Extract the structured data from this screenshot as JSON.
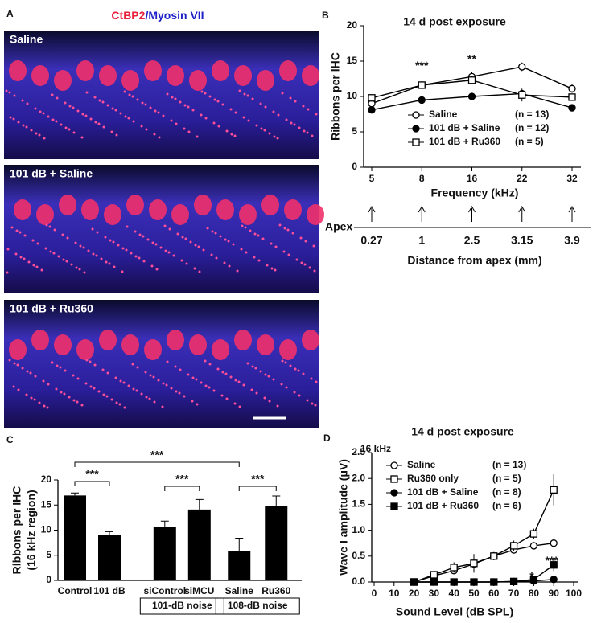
{
  "figure": {
    "panel_letters": [
      "A",
      "B",
      "C",
      "D"
    ],
    "panel_a_title": [
      "CtBP2",
      "/Myosin VII"
    ],
    "image_labels": [
      "Saline",
      "101 dB + Saline",
      "101 dB + Ru360"
    ],
    "apex": {
      "label": "Apex",
      "values": [
        0.27,
        1,
        2.5,
        3.15,
        3.9
      ],
      "axis_label": "Distance from apex (mm)"
    }
  },
  "chart_data": [
    {
      "type": "line",
      "title": "14 d post exposure",
      "ylabel": "Ribbons per IHC",
      "xlabel": "Frequency (kHz)",
      "categories": [
        "5",
        "8",
        "16",
        "22",
        "32"
      ],
      "ylim": [
        0,
        20
      ],
      "yticks": [
        0,
        5,
        10,
        15,
        20
      ],
      "series": [
        {
          "name": "Saline",
          "n": "(n = 13)",
          "marker": "open-circle",
          "color": "#000000",
          "values": [
            9.0,
            11.6,
            12.8,
            14.2,
            11.1
          ],
          "errors": [
            0.6,
            0.3,
            0.7,
            0.6,
            0.6
          ]
        },
        {
          "name": "101 dB + Saline",
          "n": "(n = 12)",
          "marker": "filled-circle",
          "color": "#000000",
          "values": [
            8.1,
            9.5,
            10.0,
            10.4,
            8.4
          ],
          "errors": [
            0.3,
            0.2,
            0.2,
            0.5,
            0.4
          ]
        },
        {
          "name": "101 dB + Ru360",
          "n": "(n = 5)",
          "marker": "open-square",
          "color": "#000000",
          "values": [
            9.8,
            11.6,
            12.3,
            10.2,
            9.9
          ],
          "errors": [
            0.5,
            0.3,
            0.6,
            0.9,
            0.5
          ]
        }
      ],
      "annotations": [
        "***",
        "**"
      ]
    },
    {
      "type": "bar",
      "ylabel": [
        "Ribbons per IHC",
        "(16 kHz region)"
      ],
      "categories": [
        "Control",
        "101 dB",
        "siControl",
        "siMCU",
        "Saline",
        "Ru360"
      ],
      "values": [
        16.9,
        9.1,
        10.6,
        14.1,
        5.8,
        14.8
      ],
      "errors": [
        0.5,
        0.6,
        1.2,
        2.0,
        2.6,
        2.0
      ],
      "color": "#000000",
      "ylim": [
        0,
        20
      ],
      "yticks": [
        0,
        5,
        10,
        15,
        20
      ],
      "group_labels": [
        "101-dB noise",
        "108-dB noise"
      ],
      "significance": [
        "***",
        "***",
        "***",
        "***"
      ]
    },
    {
      "type": "line",
      "title": "14 d post exposure",
      "subtitle": "16 kHz",
      "ylabel": "Wave I amplitude (μV)",
      "xlabel": "Sound Level (dB SPL)",
      "x": [
        20,
        30,
        40,
        50,
        60,
        70,
        80,
        90
      ],
      "xlim": [
        0,
        100
      ],
      "xticks": [
        0,
        10,
        20,
        30,
        40,
        50,
        60,
        70,
        80,
        90,
        100
      ],
      "ylim": [
        0,
        2.5
      ],
      "yticks": [
        {
          "value": 0,
          "label": "0.0"
        },
        0.5,
        {
          "value": 1,
          "label": "1.0"
        },
        1.5,
        {
          "value": 2,
          "label": "2.0"
        },
        2.5
      ],
      "series": [
        {
          "name": "Saline",
          "n": "(n = 13)",
          "marker": "open-circle",
          "color": "#000000",
          "values": [
            0,
            0.12,
            0.22,
            0.35,
            0.5,
            0.62,
            0.7,
            0.75
          ],
          "errors": [
            0,
            0.03,
            0.05,
            0.05,
            0.05,
            0.05,
            0.05,
            0.04
          ]
        },
        {
          "name": "Ru360 only",
          "n": "(n = 5)",
          "marker": "open-square",
          "color": "#000000",
          "values": [
            0,
            0.14,
            0.28,
            0.36,
            0.5,
            0.7,
            0.93,
            1.78
          ],
          "errors": [
            0,
            0.04,
            0.1,
            0.18,
            0.08,
            0.1,
            0.1,
            0.3
          ]
        },
        {
          "name": "101 dB + Saline",
          "n": "(n = 8)",
          "marker": "filled-circle",
          "color": "#000000",
          "values": [
            0,
            0,
            0,
            0,
            0,
            0.01,
            0.02,
            0.05
          ],
          "errors": [
            0,
            0,
            0,
            0,
            0,
            0.01,
            0.01,
            0.02
          ]
        },
        {
          "name": "101 dB + Ru360",
          "n": "(n = 6)",
          "marker": "filled-square",
          "color": "#000000",
          "values": [
            0,
            0,
            0,
            0,
            0,
            0.01,
            0.05,
            0.33
          ],
          "errors": [
            0,
            0,
            0,
            0,
            0,
            0.01,
            0.03,
            0.12
          ]
        }
      ],
      "annotations": [
        "***",
        "*"
      ]
    }
  ]
}
